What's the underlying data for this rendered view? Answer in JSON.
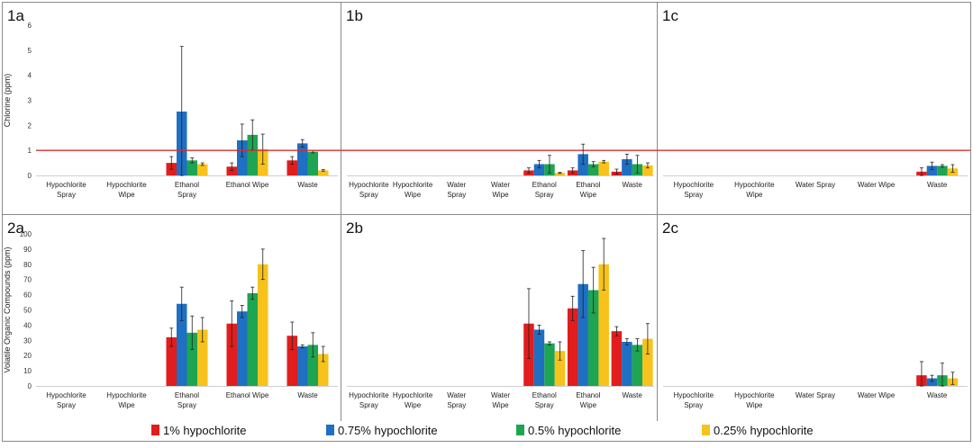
{
  "colors": {
    "hyp_1": "#e11d1d",
    "hyp_075": "#1f6fc2",
    "hyp_05": "#1da552",
    "hyp_025": "#f7c21b",
    "threshold_line": "#d23030",
    "border": "#8a8a8a"
  },
  "legend": [
    {
      "label": "1% hypochlorite",
      "color": "#e11d1d"
    },
    {
      "label": "0.75% hypochlorite",
      "color": "#1f6fc2"
    },
    {
      "label": "0.5% hypochlorite",
      "color": "#1da552"
    },
    {
      "label": "0.25% hypochlorite",
      "color": "#f7c21b"
    }
  ],
  "chart_data": [
    {
      "panel": "1a",
      "type": "bar",
      "ylabel": "Chlorine (ppm)",
      "ylim": [
        0,
        6
      ],
      "yticks": [
        0,
        1,
        2,
        3,
        4,
        5,
        6
      ],
      "threshold": 1,
      "categories": [
        "Hypochlorite Spray",
        "Hypochlorite Wipe",
        "Ethanol Spray",
        "Ethanol Wipe",
        "Waste"
      ],
      "series": [
        {
          "name": "1% hypochlorite",
          "values": [
            null,
            null,
            0.5,
            0.35,
            0.6
          ],
          "errors": [
            null,
            null,
            0.25,
            0.15,
            0.15
          ]
        },
        {
          "name": "0.75% hypochlorite",
          "values": [
            null,
            null,
            2.55,
            1.4,
            1.28
          ],
          "errors": [
            null,
            null,
            2.6,
            0.65,
            0.15
          ]
        },
        {
          "name": "0.5% hypochlorite",
          "values": [
            null,
            null,
            0.6,
            1.62,
            0.95
          ],
          "errors": [
            null,
            null,
            0.1,
            0.6,
            0.05
          ]
        },
        {
          "name": "0.25% hypochlorite",
          "values": [
            null,
            null,
            0.45,
            1.05,
            0.2
          ],
          "errors": [
            null,
            null,
            0.05,
            0.6,
            0.03
          ]
        }
      ]
    },
    {
      "panel": "1b",
      "type": "bar",
      "ylim": [
        0,
        6
      ],
      "threshold": 1,
      "categories": [
        "Hypochlorite Spray",
        "Hypochlorite Wipe",
        "Water Spray",
        "Water Wipe",
        "Ethanol Spray",
        "Ethanol Wipe",
        "Waste"
      ],
      "series": [
        {
          "name": "1% hypochlorite",
          "values": [
            null,
            null,
            null,
            null,
            0.2,
            0.2,
            0.15
          ],
          "errors": [
            null,
            null,
            null,
            null,
            0.1,
            0.1,
            0.1
          ]
        },
        {
          "name": "0.75% hypochlorite",
          "values": [
            null,
            null,
            null,
            null,
            0.45,
            0.85,
            0.65
          ],
          "errors": [
            null,
            null,
            null,
            null,
            0.15,
            0.4,
            0.2
          ]
        },
        {
          "name": "0.5% hypochlorite",
          "values": [
            null,
            null,
            null,
            null,
            0.45,
            0.45,
            0.45
          ],
          "errors": [
            null,
            null,
            null,
            null,
            0.35,
            0.1,
            0.35
          ]
        },
        {
          "name": "0.25% hypochlorite",
          "values": [
            null,
            null,
            null,
            null,
            0.1,
            0.55,
            0.4
          ],
          "errors": [
            null,
            null,
            null,
            null,
            0.02,
            0.05,
            0.1
          ]
        }
      ]
    },
    {
      "panel": "1c",
      "type": "bar",
      "ylim": [
        0,
        6
      ],
      "threshold": 1,
      "categories": [
        "Hypochlorite Spray",
        "Hypochlorite Wipe",
        "Water Spray",
        "Water Wipe",
        "Waste"
      ],
      "series": [
        {
          "name": "1% hypochlorite",
          "values": [
            null,
            null,
            null,
            null,
            0.15
          ],
          "errors": [
            null,
            null,
            null,
            null,
            0.15
          ]
        },
        {
          "name": "0.75% hypochlorite",
          "values": [
            null,
            null,
            null,
            null,
            0.38
          ],
          "errors": [
            null,
            null,
            null,
            null,
            0.15
          ]
        },
        {
          "name": "0.5% hypochlorite",
          "values": [
            null,
            null,
            null,
            null,
            0.38
          ],
          "errors": [
            null,
            null,
            null,
            null,
            0.05
          ]
        },
        {
          "name": "0.25% hypochlorite",
          "values": [
            null,
            null,
            null,
            null,
            0.28
          ],
          "errors": [
            null,
            null,
            null,
            null,
            0.15
          ]
        }
      ]
    },
    {
      "panel": "2a",
      "type": "bar",
      "ylabel": "Volatile Organic Compounds (ppm)",
      "ylim": [
        0,
        100
      ],
      "yticks": [
        0,
        10,
        20,
        30,
        40,
        50,
        60,
        70,
        80,
        90,
        100
      ],
      "categories": [
        "Hypochlorite Spray",
        "Hypochlorite Wipe",
        "Ethanol Spray",
        "Ethanol Wipe",
        "Waste"
      ],
      "series": [
        {
          "name": "1% hypochlorite",
          "values": [
            null,
            null,
            32,
            41,
            33
          ],
          "errors": [
            null,
            null,
            6,
            15,
            9
          ]
        },
        {
          "name": "0.75% hypochlorite",
          "values": [
            null,
            null,
            54,
            49,
            26
          ],
          "errors": [
            null,
            null,
            11,
            4,
            1
          ]
        },
        {
          "name": "0.5% hypochlorite",
          "values": [
            null,
            null,
            35,
            61,
            27
          ],
          "errors": [
            null,
            null,
            11,
            4,
            8
          ]
        },
        {
          "name": "0.25% hypochlorite",
          "values": [
            null,
            null,
            37,
            80,
            21
          ],
          "errors": [
            null,
            null,
            8,
            10,
            5
          ]
        }
      ]
    },
    {
      "panel": "2b",
      "type": "bar",
      "ylim": [
        0,
        100
      ],
      "categories": [
        "Hypochlorite Spray",
        "Hypochlorite Wipe",
        "Water Spray",
        "Water Wipe",
        "Ethanol Spray",
        "Ethanol Wipe",
        "Waste"
      ],
      "series": [
        {
          "name": "1% hypochlorite",
          "values": [
            null,
            null,
            null,
            null,
            41,
            51,
            36
          ],
          "errors": [
            null,
            null,
            null,
            null,
            23,
            8,
            3
          ]
        },
        {
          "name": "0.75% hypochlorite",
          "values": [
            null,
            null,
            null,
            null,
            37,
            67,
            29
          ],
          "errors": [
            null,
            null,
            null,
            null,
            3,
            22,
            2
          ]
        },
        {
          "name": "0.5% hypochlorite",
          "values": [
            null,
            null,
            null,
            null,
            28,
            63,
            27
          ],
          "errors": [
            null,
            null,
            null,
            null,
            1,
            15,
            4
          ]
        },
        {
          "name": "0.25% hypochlorite",
          "values": [
            null,
            null,
            null,
            null,
            23,
            80,
            31
          ],
          "errors": [
            null,
            null,
            null,
            null,
            6,
            17,
            10
          ]
        }
      ]
    },
    {
      "panel": "2c",
      "type": "bar",
      "ylim": [
        0,
        100
      ],
      "categories": [
        "Hypochlorite Spray",
        "Hypochlorite Wipe",
        "Water Spray",
        "Water Wipe",
        "Waste"
      ],
      "series": [
        {
          "name": "1% hypochlorite",
          "values": [
            null,
            null,
            null,
            null,
            7
          ],
          "errors": [
            null,
            null,
            null,
            null,
            9
          ]
        },
        {
          "name": "0.75% hypochlorite",
          "values": [
            null,
            null,
            null,
            null,
            5
          ],
          "errors": [
            null,
            null,
            null,
            null,
            2
          ]
        },
        {
          "name": "0.5% hypochlorite",
          "values": [
            null,
            null,
            null,
            null,
            7
          ],
          "errors": [
            null,
            null,
            null,
            null,
            8
          ]
        },
        {
          "name": "0.25% hypochlorite",
          "values": [
            null,
            null,
            null,
            null,
            5
          ],
          "errors": [
            null,
            null,
            null,
            null,
            4
          ]
        }
      ]
    }
  ]
}
